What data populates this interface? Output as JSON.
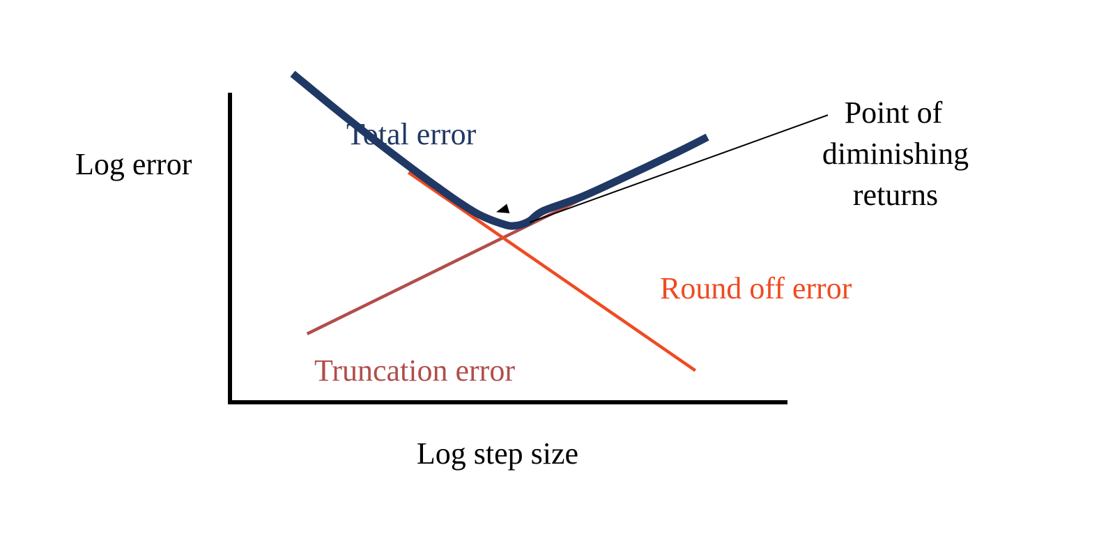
{
  "chart_data": {
    "type": "line",
    "title": "",
    "xlabel": "Log step size",
    "ylabel": "Log error",
    "xlim": [
      0,
      100
    ],
    "ylim": [
      0,
      100
    ],
    "grid": false,
    "series": [
      {
        "name": "Total error",
        "color": "#203864",
        "x": [
          0,
          10,
          20,
          30,
          38,
          44,
          46.5,
          49,
          52,
          60,
          70,
          80,
          86
        ],
        "y": [
          84,
          74.5,
          65.4,
          56.8,
          50.6,
          47.8,
          47.6,
          48.6,
          51.1,
          54.5,
          59.8,
          65.3,
          68.8
        ]
      },
      {
        "name": "Truncation error",
        "color": "#b14e4a",
        "x": [
          3,
          80
        ],
        "y": [
          21.6,
          65.3
        ]
      },
      {
        "name": "Round off error",
        "color": "#ef4b22",
        "x": [
          24,
          83.5
        ],
        "y": [
          60.3,
          12.8
        ]
      }
    ],
    "annotations": [
      {
        "lines": [
          "Point of",
          "diminishing",
          "returns"
        ],
        "arrow_to": [
          42.2,
          50.8
        ]
      }
    ]
  }
}
